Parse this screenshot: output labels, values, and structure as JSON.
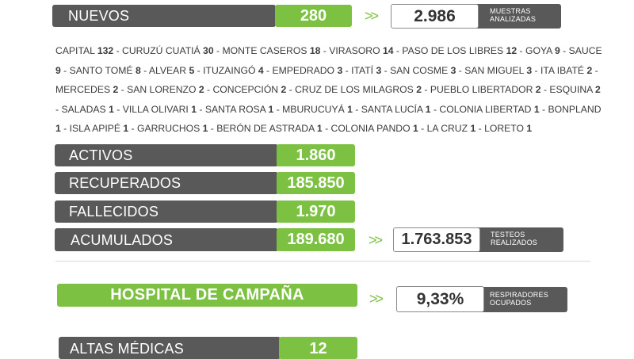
{
  "top": {
    "nuevos_label": "NUEVOS",
    "nuevos_value": "280",
    "arrows": ">>",
    "muestras_value": "2.986",
    "muestras_caption_line1": "MUESTRAS",
    "muestras_caption_line2": "ANALIZADAS"
  },
  "locations": [
    {
      "name": "CAPITAL",
      "count": "132"
    },
    {
      "name": "CURUZÚ CUATIÁ",
      "count": "30"
    },
    {
      "name": "MONTE CASEROS",
      "count": "18"
    },
    {
      "name": "VIRASORO",
      "count": "14"
    },
    {
      "name": "PASO DE LOS LIBRES",
      "count": "12"
    },
    {
      "name": "GOYA",
      "count": "9"
    },
    {
      "name": "SAUCE",
      "count": "9"
    },
    {
      "name": "SANTO TOMÉ",
      "count": "8"
    },
    {
      "name": "ALVEAR",
      "count": "5"
    },
    {
      "name": "ITUZAINGÓ",
      "count": "4"
    },
    {
      "name": "EMPEDRADO",
      "count": "3"
    },
    {
      "name": "ITATÍ",
      "count": "3"
    },
    {
      "name": "SAN COSME",
      "count": "3"
    },
    {
      "name": "SAN MIGUEL",
      "count": "3"
    },
    {
      "name": "ITA IBATÉ",
      "count": "2"
    },
    {
      "name": "MERCEDES",
      "count": "2"
    },
    {
      "name": "SAN LORENZO",
      "count": "2"
    },
    {
      "name": "CONCEPCIÓN",
      "count": "2"
    },
    {
      "name": "CRUZ DE LOS MILAGROS",
      "count": "2"
    },
    {
      "name": "PUEBLO LIBERTADOR",
      "count": "2"
    },
    {
      "name": "ESQUINA",
      "count": "2"
    },
    {
      "name": "SALADAS",
      "count": "1"
    },
    {
      "name": "VILLA OLIVARI",
      "count": "1"
    },
    {
      "name": "SANTA ROSA",
      "count": "1"
    },
    {
      "name": "MBURUCUYÁ",
      "count": "1"
    },
    {
      "name": "SANTA LUCÍA",
      "count": "1"
    },
    {
      "name": "COLONIA LIBERTAD",
      "count": "1"
    },
    {
      "name": "BONPLAND",
      "count": "1"
    },
    {
      "name": "ISLA APIPÉ",
      "count": "1"
    },
    {
      "name": "GARRUCHOS",
      "count": "1"
    },
    {
      "name": "BERÓN DE ASTRADA",
      "count": "1"
    },
    {
      "name": "COLONIA PANDO",
      "count": "1"
    },
    {
      "name": "LA CRUZ",
      "count": "1"
    },
    {
      "name": "LORETO",
      "count": "1"
    }
  ],
  "stats": {
    "activos_label": "ACTIVOS",
    "activos_value": "1.860",
    "recuperados_label": "RECUPERADOS",
    "recuperados_value": "185.850",
    "fallecidos_label": "FALLECIDOS",
    "fallecidos_value": "1.970",
    "acumulados_label": "ACUMULADOS",
    "acumulados_value": "189.680",
    "arrows": ">>",
    "testeos_value": "1.763.853",
    "testeos_caption_line1": "TESTEOS",
    "testeos_caption_line2": "REALIZADOS"
  },
  "hospital": {
    "title": "HOSPITAL DE CAMPAÑA",
    "arrows": ">>",
    "respiradores_value": "9,33%",
    "respiradores_caption_line1": "RESPIRADORES",
    "respiradores_caption_line2": "OCUPADOS",
    "altas_label": "ALTAS MÉDICAS",
    "altas_value": "12"
  },
  "colors": {
    "green": "#7cc142",
    "dark_gray": "#595959"
  }
}
